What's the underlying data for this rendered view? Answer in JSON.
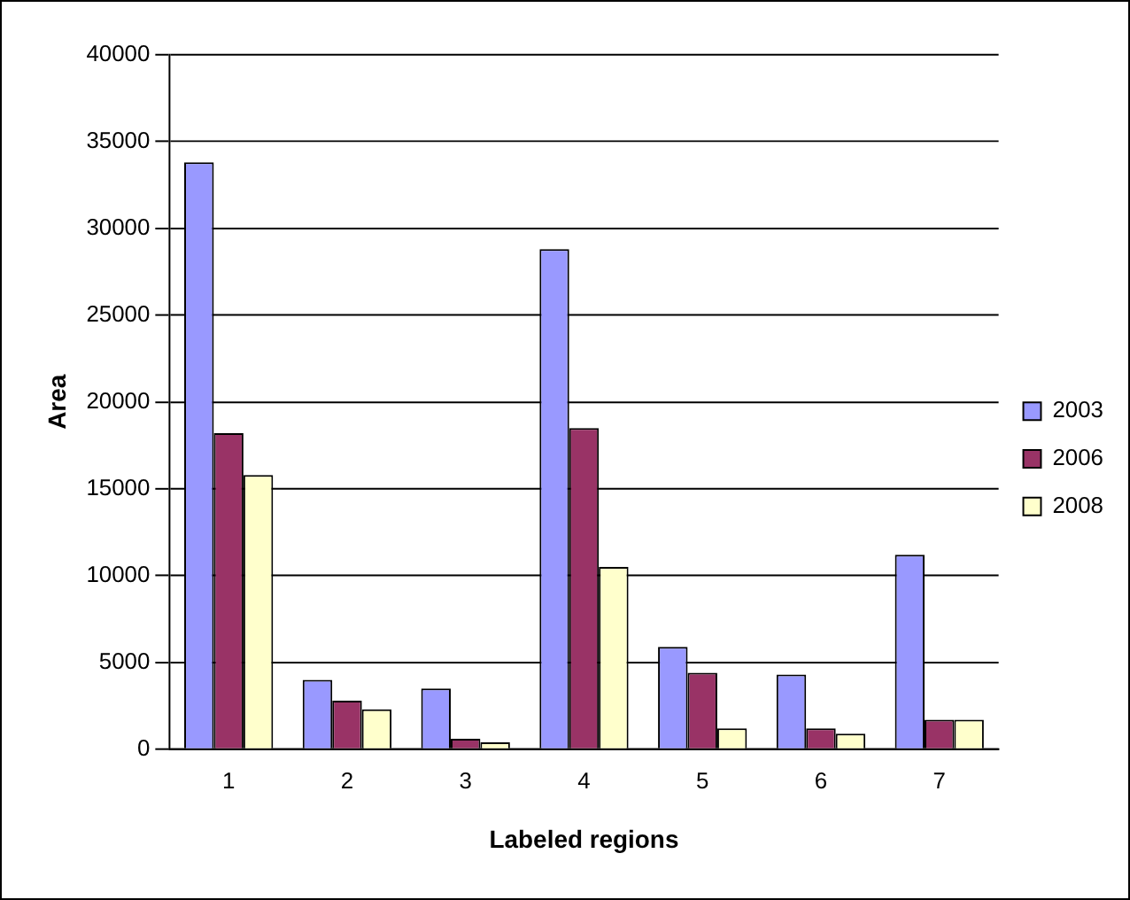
{
  "chart_data": {
    "type": "bar",
    "xlabel": "Labeled regions",
    "ylabel": "Area",
    "categories": [
      "1",
      "2",
      "3",
      "4",
      "5",
      "6",
      "7"
    ],
    "series": [
      {
        "name": "2003",
        "color": "#9999ff",
        "values": [
          33800,
          4000,
          3500,
          28800,
          5900,
          4300,
          11200
        ]
      },
      {
        "name": "2006",
        "color": "#993366",
        "values": [
          18200,
          2800,
          600,
          18500,
          4400,
          1200,
          1700
        ]
      },
      {
        "name": "2008",
        "color": "#ffffcc",
        "values": [
          15800,
          2300,
          400,
          10500,
          1200,
          900,
          1700
        ]
      }
    ],
    "ylim": [
      0,
      40000
    ],
    "yticks": [
      0,
      5000,
      10000,
      15000,
      20000,
      25000,
      30000,
      35000,
      40000
    ],
    "grid": "y",
    "legend": "right"
  }
}
